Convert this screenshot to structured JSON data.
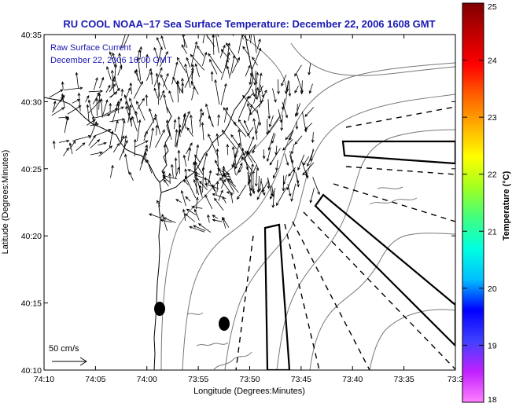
{
  "title": "RU COOL  NOAA−17  Sea Surface Temperature:  December 22, 2006 1608 GMT",
  "overlay": {
    "line1": "Raw Surface Current",
    "line2": "December 22, 2006 16:00 GMT"
  },
  "scale": {
    "label": "50 cm/s"
  },
  "axes": {
    "x_title": "Longitude (Degrees:Minutes)",
    "y_title": "Latitude (Degrees:Minutes)",
    "x_ticks": [
      "74:10",
      "74:05",
      "74:00",
      "73:55",
      "73:50",
      "73:45",
      "73:40",
      "73:35",
      "73:3"
    ],
    "y_ticks": [
      "40:35",
      "40:30",
      "40:25",
      "40:20",
      "40:15",
      "40:10"
    ]
  },
  "colorbar": {
    "title": "Temperature (°C)",
    "ticks": [
      "25",
      "24",
      "23",
      "22",
      "21",
      "20",
      "19",
      "18"
    ],
    "range": [
      18,
      25
    ],
    "colors": [
      "#ff80ff",
      "#c020ff",
      "#4040ff",
      "#0000ff",
      "#00c0ff",
      "#00ffe0",
      "#40ff80",
      "#a0ff20",
      "#ffff00",
      "#ffb000",
      "#ff6000",
      "#ff0000",
      "#c00000",
      "#800000"
    ]
  },
  "map_features": {
    "land_color": "#ffffff",
    "contour_color": "#777777",
    "vector_color": "#000000",
    "marker_color": "#000000",
    "marker_count": 2,
    "shipping_lanes": 3
  }
}
